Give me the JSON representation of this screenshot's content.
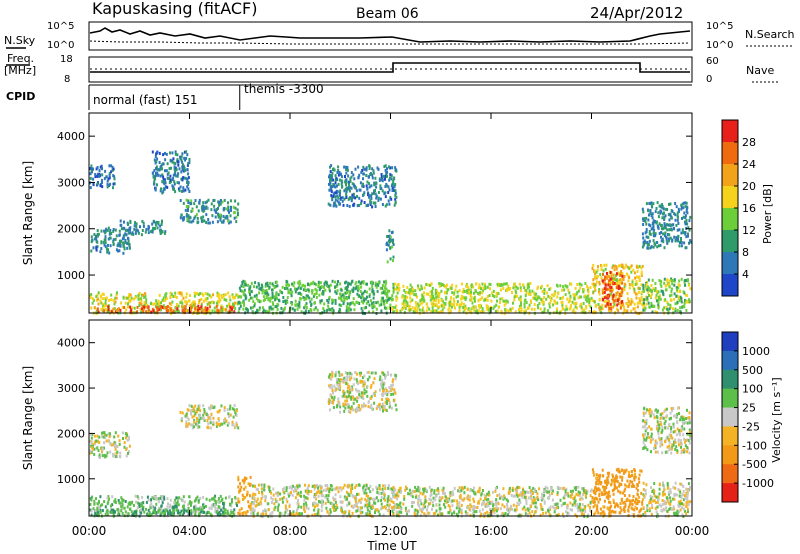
{
  "header": {
    "station": "Kapuskasing (fitACF)",
    "beam": "Beam 06",
    "date": "24/Apr/2012"
  },
  "nsky": {
    "label": "N.Sky",
    "ticks": [
      "10^5",
      "10^0"
    ],
    "right_label": "N.Search",
    "right_ticks": [
      "10^5",
      "10^0"
    ]
  },
  "freq": {
    "label_line1": "Freq.",
    "label_line2": "[MHz]",
    "ticks": [
      "18",
      "8"
    ],
    "right_label": "Nave",
    "right_ticks": [
      "60",
      "0"
    ]
  },
  "cpid": {
    "label": "CPID",
    "programs": [
      {
        "name": "normal (fast) 151",
        "start_hour": 0,
        "end_hour": 6
      },
      {
        "name": "themis -3300",
        "start_hour": 6,
        "end_hour": 24
      }
    ]
  },
  "x_axis": {
    "ticks": [
      "00:00",
      "04:00",
      "08:00",
      "12:00",
      "16:00",
      "20:00",
      "00:00"
    ],
    "tick_hours": [
      0,
      4,
      8,
      12,
      16,
      20,
      24
    ],
    "label": "Time UT"
  },
  "power_colorbar": {
    "label": "Power [dB]",
    "ticks": [
      "28",
      "24",
      "20",
      "16",
      "12",
      "8",
      "4"
    ],
    "colors": [
      "#e8201c",
      "#f06a10",
      "#f2a31a",
      "#f5d21c",
      "#6ccf3a",
      "#2f9a6a",
      "#2e78b8",
      "#1f46c8"
    ]
  },
  "velocity_colorbar": {
    "label": "Velocity [m s⁻¹]",
    "ticks": [
      "1000",
      "500",
      "100",
      "25",
      "-25",
      "-100",
      "-500",
      "-1000"
    ],
    "colors": [
      "#1f3fbf",
      "#2a6fb8",
      "#2f8f6f",
      "#5cbf4a",
      "#c8c8c8",
      "#f3b325",
      "#f29a18",
      "#ee6a14",
      "#e52218"
    ]
  },
  "chart_data": [
    {
      "type": "heatmap",
      "title": "",
      "xlabel": "",
      "ylabel": "Slant Range [km]",
      "xlim": [
        0,
        24
      ],
      "ylim": [
        180,
        4500
      ],
      "yticks": [
        1000,
        2000,
        3000,
        4000
      ],
      "x_unit": "hours UT",
      "quantity": "Power [dB]",
      "value_range": [
        0,
        30
      ],
      "regions": [
        {
          "t": [
            0.0,
            0.3
          ],
          "r": [
            1500,
            1950
          ],
          "v": 5
        },
        {
          "t": [
            0.3,
            1.6
          ],
          "r": [
            1500,
            2050
          ],
          "v": 6
        },
        {
          "t": [
            0.0,
            1.0
          ],
          "r": [
            2900,
            3400
          ],
          "v": 4
        },
        {
          "t": [
            1.2,
            3.0
          ],
          "r": [
            1900,
            2200
          ],
          "v": 6
        },
        {
          "t": [
            2.5,
            4.0
          ],
          "r": [
            2800,
            3700
          ],
          "v": 5
        },
        {
          "t": [
            3.6,
            5.9
          ],
          "r": [
            2150,
            2650
          ],
          "v": 7
        },
        {
          "t": [
            0.0,
            5.9
          ],
          "r": [
            200,
            650
          ],
          "v": 15
        },
        {
          "t": [
            0.2,
            5.8
          ],
          "r": [
            220,
            360
          ],
          "v": 25
        },
        {
          "t": [
            5.9,
            12.1
          ],
          "r": [
            200,
            900
          ],
          "v": 10
        },
        {
          "t": [
            9.5,
            12.2
          ],
          "r": [
            2500,
            3400
          ],
          "v": 5
        },
        {
          "t": [
            11.8,
            12.1
          ],
          "r": [
            1300,
            2000
          ],
          "v": 7
        },
        {
          "t": [
            12.0,
            20.0
          ],
          "r": [
            200,
            850
          ],
          "v": 14
        },
        {
          "t": [
            20.0,
            22.0
          ],
          "r": [
            200,
            1250
          ],
          "v": 17
        },
        {
          "t": [
            20.4,
            21.2
          ],
          "r": [
            300,
            1100
          ],
          "v": 25
        },
        {
          "t": [
            22.0,
            23.9
          ],
          "r": [
            200,
            950
          ],
          "v": 12
        },
        {
          "t": [
            22.0,
            23.9
          ],
          "r": [
            1600,
            2600
          ],
          "v": 6
        }
      ]
    },
    {
      "type": "heatmap",
      "title": "",
      "xlabel": "Time UT",
      "ylabel": "Slant Range [km]",
      "xlim": [
        0,
        24
      ],
      "ylim": [
        180,
        4500
      ],
      "yticks": [
        1000,
        2000,
        3000,
        4000
      ],
      "x_unit": "hours UT",
      "quantity": "Velocity [m s⁻¹]",
      "value_range": [
        -1000,
        1000
      ],
      "regions": [
        {
          "t": [
            0.0,
            1.6
          ],
          "r": [
            1500,
            2050
          ],
          "v": 0
        },
        {
          "t": [
            3.6,
            5.9
          ],
          "r": [
            2150,
            2650
          ],
          "v": 0
        },
        {
          "t": [
            0.0,
            5.9
          ],
          "r": [
            200,
            650
          ],
          "v": 60
        },
        {
          "t": [
            0.2,
            5.8
          ],
          "r": [
            220,
            350
          ],
          "v": 110
        },
        {
          "t": [
            5.9,
            6.4
          ],
          "r": [
            250,
            1100
          ],
          "v": -120
        },
        {
          "t": [
            6.4,
            12.1
          ],
          "r": [
            200,
            900
          ],
          "v": 0
        },
        {
          "t": [
            9.5,
            12.2
          ],
          "r": [
            2500,
            3400
          ],
          "v": 0
        },
        {
          "t": [
            12.0,
            20.0
          ],
          "r": [
            200,
            850
          ],
          "v": 0
        },
        {
          "t": [
            20.0,
            22.0
          ],
          "r": [
            200,
            1250
          ],
          "v": -150
        },
        {
          "t": [
            22.0,
            23.9
          ],
          "r": [
            200,
            950
          ],
          "v": 0
        },
        {
          "t": [
            22.0,
            23.9
          ],
          "r": [
            1600,
            2600
          ],
          "v": 0
        }
      ]
    }
  ]
}
